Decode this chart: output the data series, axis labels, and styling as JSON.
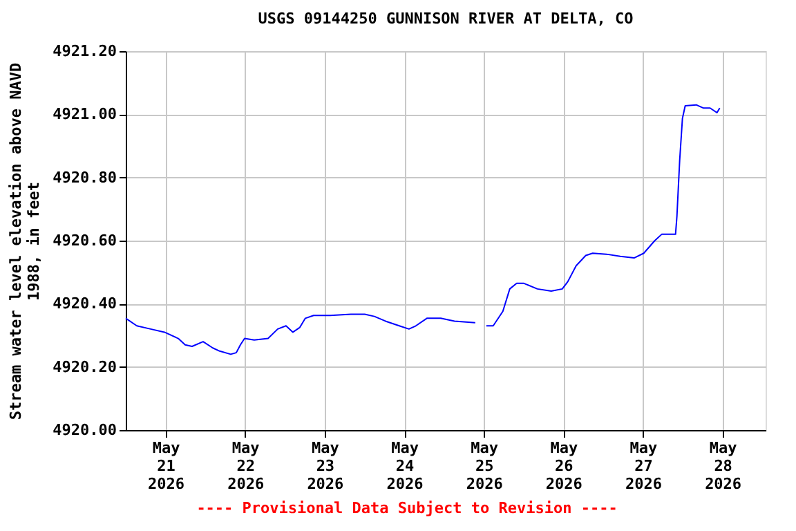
{
  "chart_data": {
    "type": "line",
    "title": "USGS 09144250 GUNNISON RIVER AT DELTA, CO",
    "ylabel": "Stream water level elevation above NAVD\n1988, in feet",
    "annotations": [
      "---- Provisional Data Subject to Revision ----"
    ],
    "x": [
      "2026-05-20T12:00",
      "2026-05-20T15:20",
      "2026-05-20T19:30",
      "2026-05-20T23:40",
      "2026-05-21T03:50",
      "2026-05-21T05:55",
      "2026-05-21T08:00",
      "2026-05-21T11:20",
      "2026-05-21T14:15",
      "2026-05-21T16:20",
      "2026-05-21T19:40",
      "2026-05-21T21:20",
      "2026-05-21T22:35",
      "2026-05-21T23:50",
      "2026-05-22T02:45",
      "2026-05-22T06:55",
      "2026-05-22T09:50",
      "2026-05-22T12:20",
      "2026-05-22T14:25",
      "2026-05-22T16:30",
      "2026-05-22T18:10",
      "2026-05-22T20:40",
      "2026-05-23T01:40",
      "2026-05-23T07:55",
      "2026-05-23T12:05",
      "2026-05-23T15:00",
      "2026-05-23T18:20",
      "2026-05-23T22:30",
      "2026-05-24T01:25",
      "2026-05-24T03:30",
      "2026-05-24T06:50",
      "2026-05-24T11:00",
      "2026-05-24T15:10",
      "2026-05-24T21:25",
      "2026-05-24T23:05",
      "2026-05-25T00:45",
      "2026-05-25T02:50",
      "2026-05-25T05:45",
      "2026-05-25T07:50",
      "2026-05-25T09:55",
      "2026-05-25T12:00",
      "2026-05-25T16:10",
      "2026-05-25T20:20",
      "2026-05-25T23:40",
      "2026-05-26T01:20",
      "2026-05-26T03:50",
      "2026-05-26T06:45",
      "2026-05-26T08:50",
      "2026-05-26T13:00",
      "2026-05-26T17:10",
      "2026-05-26T21:20",
      "2026-05-27T00:15",
      "2026-05-27T03:35",
      "2026-05-27T05:40",
      "2026-05-27T09:50",
      "2026-05-27T10:15",
      "2026-05-27T11:05",
      "2026-05-27T11:55",
      "2026-05-27T12:45",
      "2026-05-27T16:05",
      "2026-05-27T18:10",
      "2026-05-27T20:15",
      "2026-05-27T22:20",
      "2026-05-27T23:10"
    ],
    "series": [
      {
        "color": "#0000ff",
        "values": [
          4920.354,
          4920.33,
          4920.32,
          4920.31,
          4920.29,
          4920.27,
          4920.265,
          4920.28,
          4920.26,
          4920.25,
          4920.24,
          4920.245,
          4920.27,
          4920.29,
          4920.285,
          4920.29,
          4920.32,
          4920.33,
          4920.31,
          4920.325,
          4920.354,
          4920.363,
          4920.363,
          4920.367,
          4920.367,
          4920.36,
          4920.345,
          4920.33,
          4920.32,
          4920.33,
          4920.354,
          4920.354,
          4920.345,
          4920.34,
          null,
          4920.33,
          4920.33,
          4920.376,
          4920.447,
          4920.465,
          4920.465,
          4920.447,
          4920.44,
          4920.447,
          4920.47,
          4920.52,
          4920.553,
          4920.56,
          4920.557,
          4920.55,
          4920.545,
          4920.56,
          4920.6,
          4920.62,
          4920.62,
          4920.677,
          4920.854,
          4920.987,
          4921.027,
          4921.03,
          4921.02,
          4921.02,
          4921.005,
          4921.02
        ]
      }
    ],
    "xlim": [
      "2026-05-20T12:00",
      "2026-05-28T13:00"
    ],
    "xticks": [
      {
        "value": "2026-05-21",
        "label": "May\n21\n2026"
      },
      {
        "value": "2026-05-22",
        "label": "May\n22\n2026"
      },
      {
        "value": "2026-05-23",
        "label": "May\n23\n2026"
      },
      {
        "value": "2026-05-24",
        "label": "May\n24\n2026"
      },
      {
        "value": "2026-05-25",
        "label": "May\n25\n2026"
      },
      {
        "value": "2026-05-26",
        "label": "May\n26\n2026"
      },
      {
        "value": "2026-05-27",
        "label": "May\n27\n2026"
      },
      {
        "value": "2026-05-28",
        "label": "May\n28\n2026"
      }
    ],
    "ylim": [
      4920.0,
      4921.2
    ],
    "yticks": [
      {
        "value": 4920.0,
        "label": "4920.00"
      },
      {
        "value": 4920.2,
        "label": "4920.20"
      },
      {
        "value": 4920.4,
        "label": "4920.40"
      },
      {
        "value": 4920.6,
        "label": "4920.60"
      },
      {
        "value": 4920.8,
        "label": "4920.80"
      },
      {
        "value": 4921.0,
        "label": "4921.00"
      },
      {
        "value": 4921.2,
        "label": "4921.20"
      }
    ],
    "grid": true,
    "line_style": "solid",
    "marker": "none"
  }
}
